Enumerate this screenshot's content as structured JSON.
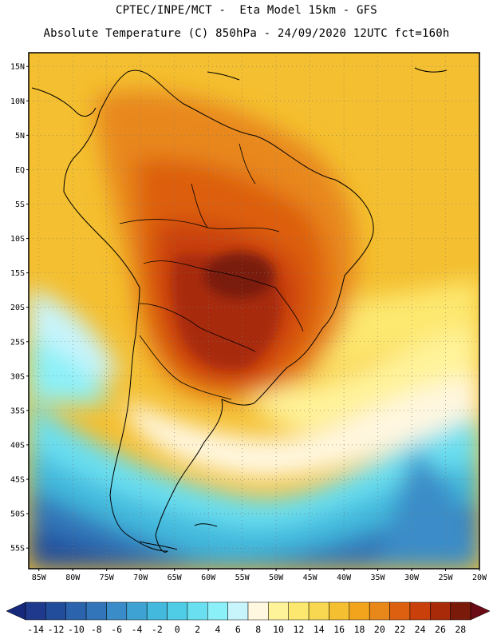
{
  "header": {
    "line1": "CPTEC/INPE/MCT -  Eta Model 15km - GFS",
    "line2": "Absolute Temperature (C) 850hPa - 24/09/2020 12UTC fct=160h"
  },
  "map": {
    "lat_labels": [
      "15N",
      "10N",
      "5N",
      "EQ",
      "5S",
      "10S",
      "15S",
      "20S",
      "25S",
      "30S",
      "35S",
      "40S",
      "45S",
      "50S",
      "55S"
    ],
    "lon_labels": [
      "85W",
      "80W",
      "75W",
      "70W",
      "65W",
      "60W",
      "55W",
      "50W",
      "45W",
      "40W",
      "35W",
      "30W",
      "25W",
      "20W"
    ],
    "lat_values": [
      15,
      10,
      5,
      0,
      -5,
      -10,
      -15,
      -20,
      -25,
      -30,
      -35,
      -40,
      -45,
      -50,
      -55
    ],
    "lon_values": [
      -85,
      -80,
      -75,
      -70,
      -65,
      -60,
      -55,
      -50,
      -45,
      -40,
      -35,
      -30,
      -25,
      -20
    ],
    "lat_range": [
      -58,
      17
    ],
    "lon_range": [
      -86.5,
      -20
    ],
    "grid": "dotted"
  },
  "colorbar": {
    "labels": [
      "-14",
      "-12",
      "-10",
      "-8",
      "-6",
      "-4",
      "-2",
      "0",
      "2",
      "4",
      "6",
      "8",
      "10",
      "12",
      "14",
      "16",
      "18",
      "20",
      "22",
      "24",
      "26",
      "28"
    ],
    "colors": [
      "#1f3a8c",
      "#214d9b",
      "#2c63ad",
      "#3275b8",
      "#3a8cc8",
      "#3ea3d3",
      "#43b9dd",
      "#4fcde6",
      "#6adff0",
      "#8cf0f8",
      "#c8f4fb",
      "#fff7e0",
      "#fff39a",
      "#fde86f",
      "#f8d850",
      "#f4bf30",
      "#f1a41c",
      "#e8871a",
      "#dd5f10",
      "#c9400a",
      "#a82a08",
      "#7a1a0a"
    ],
    "underflow_color": "#15287a",
    "overflow_color": "#6a0a14"
  }
}
